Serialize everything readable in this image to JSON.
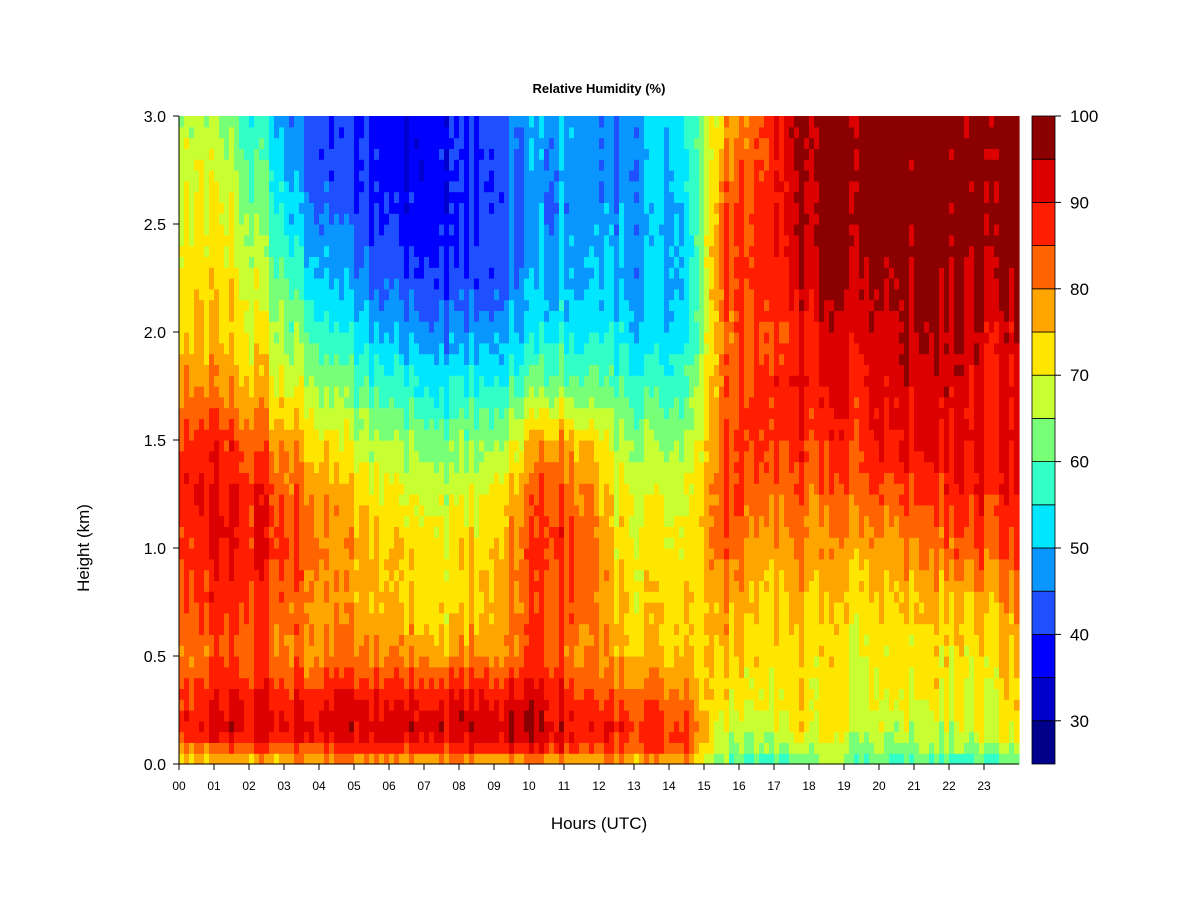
{
  "chart_data": {
    "type": "heatmap",
    "title": "Relative Humidity (%)",
    "xlabel": "Hours (UTC)",
    "ylabel": "Height (km)",
    "xlim": [
      0,
      24
    ],
    "ylim": [
      0.0,
      3.0
    ],
    "x_ticks": [
      "00",
      "01",
      "02",
      "03",
      "04",
      "05",
      "06",
      "07",
      "08",
      "09",
      "10",
      "11",
      "12",
      "13",
      "14",
      "15",
      "16",
      "17",
      "18",
      "19",
      "20",
      "21",
      "22",
      "23"
    ],
    "y_ticks": [
      "0.0",
      "0.5",
      "1.0",
      "1.5",
      "2.0",
      "2.5",
      "3.0"
    ],
    "heights_km": [
      0.0,
      0.05,
      0.15,
      0.3,
      0.5,
      0.75,
      1.0,
      1.25,
      1.5,
      1.75,
      2.0,
      2.25,
      2.5,
      2.75,
      3.0
    ],
    "hours": [
      0,
      1,
      2,
      3,
      4,
      5,
      6,
      7,
      8,
      9,
      10,
      11,
      12,
      13,
      14,
      15,
      16,
      17,
      18,
      19,
      20,
      21,
      22,
      23
    ],
    "rh_values_by_hour": [
      [
        72,
        78,
        90,
        88,
        82,
        86,
        88,
        90,
        88,
        80,
        76,
        74,
        72,
        70,
        68
      ],
      [
        72,
        80,
        92,
        90,
        84,
        87,
        90,
        90,
        86,
        78,
        74,
        72,
        70,
        66,
        62
      ],
      [
        74,
        82,
        93,
        91,
        84,
        86,
        89,
        88,
        82,
        74,
        70,
        66,
        62,
        58,
        54
      ],
      [
        74,
        82,
        92,
        88,
        80,
        82,
        84,
        82,
        76,
        68,
        62,
        56,
        50,
        46,
        44
      ],
      [
        74,
        84,
        92,
        90,
        80,
        78,
        78,
        76,
        70,
        62,
        54,
        48,
        44,
        40,
        40
      ],
      [
        74,
        84,
        92,
        90,
        80,
        76,
        76,
        72,
        66,
        58,
        50,
        44,
        40,
        38,
        38
      ],
      [
        74,
        84,
        93,
        90,
        80,
        74,
        74,
        70,
        64,
        56,
        48,
        42,
        38,
        36,
        36
      ],
      [
        74,
        84,
        93,
        90,
        78,
        72,
        72,
        68,
        62,
        54,
        46,
        40,
        38,
        37,
        38
      ],
      [
        74,
        86,
        94,
        92,
        80,
        74,
        74,
        70,
        64,
        56,
        48,
        42,
        40,
        40,
        42
      ],
      [
        72,
        86,
        95,
        92,
        82,
        80,
        80,
        76,
        68,
        58,
        50,
        46,
        44,
        44,
        46
      ],
      [
        72,
        88,
        94,
        92,
        86,
        86,
        88,
        86,
        80,
        64,
        54,
        50,
        48,
        48,
        50
      ],
      [
        72,
        84,
        90,
        86,
        80,
        84,
        86,
        82,
        76,
        62,
        54,
        50,
        48,
        48,
        48
      ],
      [
        74,
        82,
        88,
        82,
        76,
        74,
        72,
        70,
        66,
        58,
        52,
        48,
        46,
        44,
        44
      ],
      [
        74,
        84,
        88,
        84,
        76,
        74,
        72,
        70,
        64,
        58,
        52,
        50,
        50,
        50,
        52
      ],
      [
        74,
        82,
        86,
        80,
        74,
        72,
        70,
        68,
        64,
        58,
        52,
        50,
        50,
        52,
        54
      ],
      [
        62,
        66,
        70,
        72,
        76,
        80,
        84,
        86,
        84,
        82,
        82,
        84,
        84,
        80,
        76
      ],
      [
        52,
        62,
        66,
        70,
        72,
        74,
        78,
        82,
        86,
        86,
        84,
        86,
        86,
        84,
        82
      ],
      [
        58,
        66,
        72,
        74,
        74,
        76,
        80,
        84,
        88,
        90,
        88,
        92,
        94,
        94,
        96
      ],
      [
        62,
        66,
        70,
        72,
        72,
        74,
        78,
        82,
        86,
        90,
        92,
        96,
        98,
        98,
        98
      ],
      [
        60,
        64,
        68,
        70,
        70,
        74,
        78,
        84,
        88,
        90,
        92,
        96,
        98,
        98,
        98
      ],
      [
        56,
        62,
        66,
        70,
        72,
        74,
        78,
        84,
        90,
        92,
        94,
        96,
        98,
        98,
        98
      ],
      [
        56,
        62,
        66,
        70,
        72,
        74,
        80,
        86,
        90,
        92,
        94,
        96,
        98,
        98,
        98
      ],
      [
        56,
        62,
        68,
        70,
        72,
        76,
        84,
        88,
        92,
        92,
        94,
        96,
        98,
        98,
        98
      ],
      [
        58,
        64,
        70,
        72,
        74,
        78,
        84,
        88,
        90,
        90,
        92,
        96,
        98,
        98,
        98
      ]
    ],
    "colorbar": {
      "levels": [
        25,
        30,
        35,
        40,
        45,
        50,
        55,
        60,
        65,
        70,
        75,
        80,
        85,
        90,
        95,
        100
      ],
      "colors": [
        "#00008b",
        "#0000cd",
        "#0000ff",
        "#1e50ff",
        "#0a96ff",
        "#00e6ff",
        "#32ffc8",
        "#78ff78",
        "#c8ff32",
        "#ffe600",
        "#ffa500",
        "#ff6400",
        "#ff1e00",
        "#dc0000",
        "#8b0000"
      ],
      "tick_labels": [
        "30",
        "40",
        "50",
        "60",
        "70",
        "80",
        "90",
        "100"
      ],
      "tick_values": [
        30,
        40,
        50,
        60,
        70,
        80,
        90,
        100
      ]
    }
  }
}
